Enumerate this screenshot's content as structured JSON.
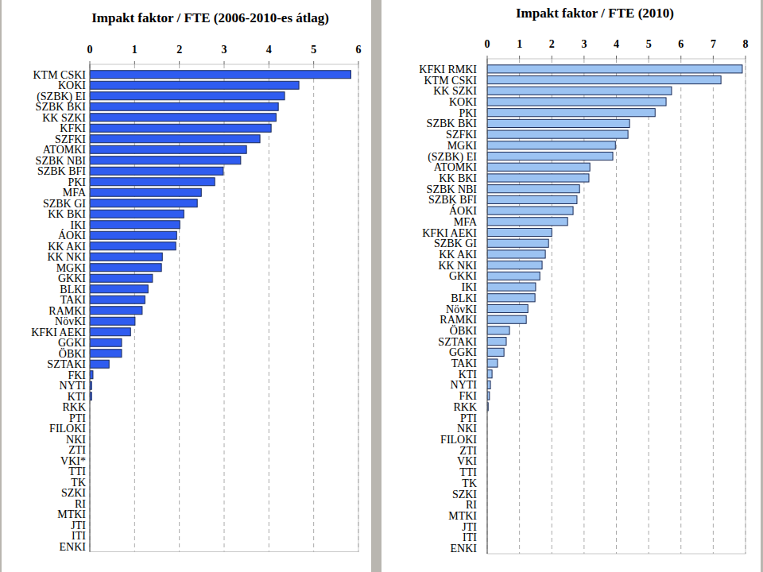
{
  "chart_data": [
    {
      "type": "bar",
      "orientation": "horizontal",
      "title": "Impakt faktor / FTE (2006-2010-es átlag)",
      "categories": [
        "KTM CSKI",
        "KOKI",
        "(SZBK) EI",
        "SZBK BKI",
        "KK SZKI",
        "KFKI",
        "SZFKI",
        "ATOMKI",
        "SZBK NBI",
        "SZBK BFI",
        "PKI",
        "MFA",
        "SZBK GI",
        "KK BKI",
        "IKI",
        "ÁOKI",
        "KK AKI",
        "KK NKI",
        "MGKI",
        "GKKI",
        "BLKI",
        "TAKI",
        "RAMKI",
        "NövKI",
        "KFKI AEKI",
        "GGKI",
        "ÖBKI",
        "SZTAKI",
        "FKI",
        "NYTI",
        "KTI",
        "RKK",
        "PTI",
        "FILOKI",
        "NKI",
        "ZTI",
        "VKI*",
        "TTI",
        "TK",
        "SZKI",
        "RI",
        "MTKI",
        "JTI",
        "ITI",
        "ENKI"
      ],
      "values": [
        5.83,
        4.67,
        4.35,
        4.21,
        4.16,
        4.05,
        3.8,
        3.5,
        3.37,
        2.98,
        2.79,
        2.49,
        2.4,
        2.1,
        2.01,
        1.94,
        1.92,
        1.62,
        1.6,
        1.4,
        1.3,
        1.23,
        1.17,
        1.01,
        0.91,
        0.71,
        0.71,
        0.43,
        0.07,
        0.04,
        0.04,
        0,
        0,
        0,
        0,
        0,
        0,
        0,
        0,
        0,
        0,
        0,
        0,
        0,
        0
      ],
      "color": "#2f5cf0",
      "xlim": [
        0,
        6
      ],
      "xticks": [
        0,
        1,
        2,
        3,
        4,
        5,
        6
      ],
      "grid": true
    },
    {
      "type": "bar",
      "orientation": "horizontal",
      "title": "Impakt faktor / FTE (2010)",
      "categories": [
        "KFKI RMKI",
        "KTM CSKI",
        "KK SZKI",
        "KOKI",
        "PKI",
        "SZBK BKI",
        "SZFKI",
        "MGKI",
        "(SZBK) EI",
        "ATOMKI",
        "KK BKI",
        "SZBK NBI",
        "SZBK BFI",
        "ÁOKI",
        "MFA",
        "KFKI AEKI",
        "SZBK GI",
        "KK AKI",
        "KK NKI",
        "GKKI",
        "IKI",
        "BLKI",
        "NövKI",
        "RAMKI",
        "ÖBKI",
        "SZTAKI",
        "GGKI",
        "TAKI",
        "KTI",
        "NYTI",
        "FKI",
        "RKK",
        "PTI",
        "NKI",
        "FILOKI",
        "ZTI",
        "VKI",
        "TTI",
        "TK",
        "SZKI",
        "RI",
        "MTKI",
        "JTI",
        "ITI",
        "ENKI"
      ],
      "values": [
        7.9,
        7.24,
        5.71,
        5.54,
        5.2,
        4.41,
        4.36,
        3.97,
        3.89,
        3.18,
        3.15,
        2.86,
        2.78,
        2.66,
        2.49,
        2.0,
        1.9,
        1.8,
        1.7,
        1.63,
        1.5,
        1.48,
        1.26,
        1.21,
        0.69,
        0.59,
        0.52,
        0.32,
        0.15,
        0.1,
        0.07,
        0.03,
        0,
        0,
        0,
        0,
        0,
        0,
        0,
        0,
        0,
        0,
        0,
        0,
        0
      ],
      "color": "#9cc3f2",
      "xlim": [
        0,
        8
      ],
      "xticks": [
        0,
        1,
        2,
        3,
        4,
        5,
        6,
        7,
        8
      ],
      "grid": true
    }
  ]
}
